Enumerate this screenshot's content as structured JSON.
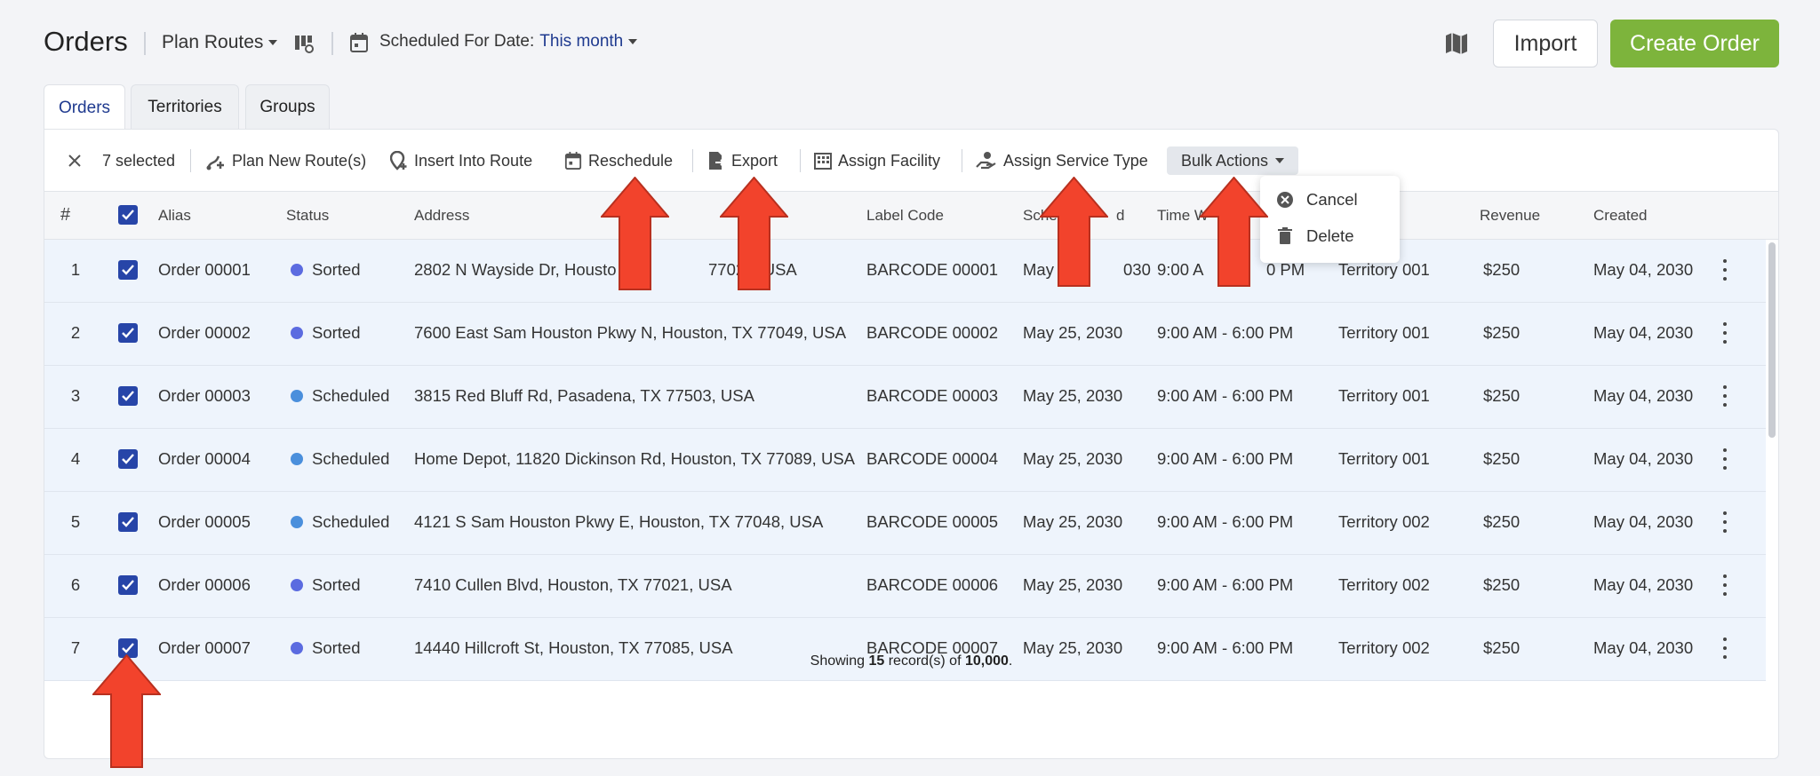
{
  "header": {
    "title": "Orders",
    "plan_routes": "Plan Routes",
    "scheduled_label": "Scheduled For Date:",
    "scheduled_value": "This month",
    "import_label": "Import",
    "create_label": "Create Order"
  },
  "tabs": [
    {
      "label": "Orders",
      "active": true
    },
    {
      "label": "Territories",
      "active": false
    },
    {
      "label": "Groups",
      "active": false
    }
  ],
  "toolbar": {
    "selected": "7 selected",
    "plan_new": "Plan New Route(s)",
    "insert": "Insert Into Route",
    "reschedule": "Reschedule",
    "export": "Export",
    "assign_facility": "Assign Facility",
    "assign_service": "Assign Service Type",
    "bulk": "Bulk Actions"
  },
  "bulk_menu": {
    "cancel": "Cancel",
    "delete": "Delete"
  },
  "columns": {
    "num": "#",
    "alias": "Alias",
    "status": "Status",
    "address": "Address",
    "label_code": "Label Code",
    "scheduled": "Sche",
    "scheduled_tail": "d",
    "time_window": "Time W",
    "revenue": "Revenue",
    "created": "Created"
  },
  "status_colors": {
    "Sorted": "#5b6be0",
    "Scheduled": "#4a8fdc"
  },
  "rows": [
    {
      "num": "1",
      "alias": "Order 00001",
      "status": "Sorted",
      "address": "2802 N Wayside Dr, Housto",
      "address_tail": "77020, USA",
      "label": "BARCODE 00001",
      "sched": "May",
      "sched_tail": "030",
      "time": "9:00 A",
      "time_tail": "0 PM",
      "territory": "Territory 001",
      "revenue": "$250",
      "created": "May 04, 2030"
    },
    {
      "num": "2",
      "alias": "Order 00002",
      "status": "Sorted",
      "address": "7600 East Sam Houston Pkwy N, Houston, TX 77049, USA",
      "label": "BARCODE 00002",
      "sched": "May 25, 2030",
      "time": "9:00 AM - 6:00 PM",
      "territory": "Territory 001",
      "revenue": "$250",
      "created": "May 04, 2030"
    },
    {
      "num": "3",
      "alias": "Order 00003",
      "status": "Scheduled",
      "address": "3815 Red Bluff Rd, Pasadena, TX 77503, USA",
      "label": "BARCODE 00003",
      "sched": "May 25, 2030",
      "time": "9:00 AM - 6:00 PM",
      "territory": "Territory 001",
      "revenue": "$250",
      "created": "May 04, 2030"
    },
    {
      "num": "4",
      "alias": "Order 00004",
      "status": "Scheduled",
      "address": "Home Depot, 11820 Dickinson Rd, Houston, TX 77089, USA",
      "label": "BARCODE 00004",
      "sched": "May 25, 2030",
      "time": "9:00 AM - 6:00 PM",
      "territory": "Territory 001",
      "revenue": "$250",
      "created": "May 04, 2030"
    },
    {
      "num": "5",
      "alias": "Order 00005",
      "status": "Scheduled",
      "address": "4121 S Sam Houston Pkwy E, Houston, TX 77048, USA",
      "label": "BARCODE 00005",
      "sched": "May 25, 2030",
      "time": "9:00 AM - 6:00 PM",
      "territory": "Territory 002",
      "revenue": "$250",
      "created": "May 04, 2030"
    },
    {
      "num": "6",
      "alias": "Order 00006",
      "status": "Sorted",
      "address": "7410 Cullen Blvd, Houston, TX 77021, USA",
      "label": "BARCODE 00006",
      "sched": "May 25, 2030",
      "time": "9:00 AM - 6:00 PM",
      "territory": "Territory 002",
      "revenue": "$250",
      "created": "May 04, 2030"
    },
    {
      "num": "7",
      "alias": "Order 00007",
      "status": "Sorted",
      "address": "14440 Hillcroft St, Houston, TX 77085, USA",
      "label": "BARCODE 00007",
      "sched": "May 25, 2030",
      "time": "9:00 AM - 6:00 PM",
      "territory": "Territory 002",
      "revenue": "$250",
      "created": "May 04, 2030"
    }
  ],
  "footer": {
    "prefix": "Showing ",
    "count": "15",
    "middle": " record(s) of ",
    "total": "10,000",
    "suffix": "."
  },
  "colors": {
    "accent": "#2745a8",
    "create": "#7db43c",
    "arrow": "#f2432c"
  }
}
